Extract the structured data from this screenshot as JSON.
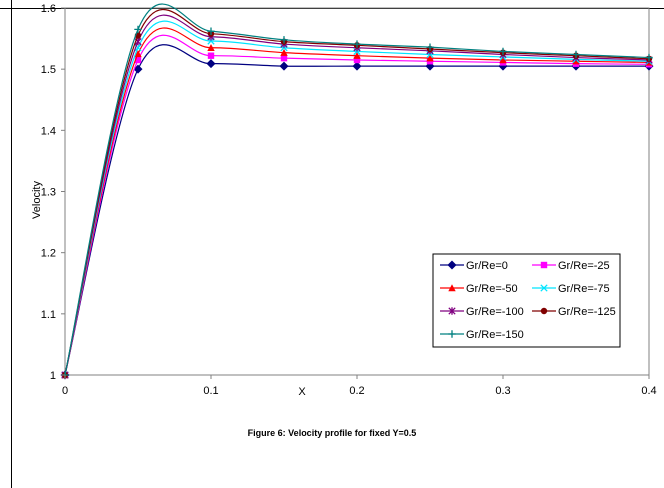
{
  "caption": "Figure 6: Velocity profile for fixed Y=0.5",
  "chart_data": {
    "type": "line",
    "title": "",
    "xlabel": "X",
    "ylabel": "Velocity",
    "xlim": [
      0,
      0.4
    ],
    "ylim": [
      1.0,
      1.6
    ],
    "x_ticks": [
      0,
      0.1,
      0.2,
      0.3,
      0.4
    ],
    "x_tick_labels": [
      "0",
      "0.1",
      "0.2",
      "0.3",
      "0.4"
    ],
    "y_ticks": [
      1.0,
      1.1,
      1.2,
      1.3,
      1.4,
      1.5,
      1.6
    ],
    "y_tick_labels": [
      "1",
      "1.1",
      "1.2",
      "1.3",
      "1.4",
      "1.5",
      "1.6"
    ],
    "grid": "none",
    "legend_position": "bottom-right",
    "x": [
      0,
      0.05,
      0.1,
      0.15,
      0.2,
      0.25,
      0.3,
      0.35,
      0.4
    ],
    "series": [
      {
        "name": "Gr/Re=0",
        "color": "#000080",
        "marker": "diamond",
        "values": [
          1.0,
          1.5,
          1.509,
          1.505,
          1.505,
          1.505,
          1.505,
          1.505,
          1.505
        ]
      },
      {
        "name": "Gr/Re=-25",
        "color": "#ff00ff",
        "marker": "square",
        "values": [
          1.0,
          1.515,
          1.522,
          1.518,
          1.515,
          1.513,
          1.511,
          1.509,
          1.508
        ]
      },
      {
        "name": "Gr/Re=-50",
        "color": "#ff0000",
        "marker": "triangle",
        "values": [
          1.0,
          1.525,
          1.535,
          1.527,
          1.522,
          1.518,
          1.515,
          1.513,
          1.511
        ]
      },
      {
        "name": "Gr/Re=-75",
        "color": "#00e5ff",
        "marker": "x",
        "values": [
          1.0,
          1.535,
          1.546,
          1.535,
          1.529,
          1.524,
          1.52,
          1.516,
          1.513
        ]
      },
      {
        "name": "Gr/Re=-100",
        "color": "#800080",
        "marker": "asterisk",
        "values": [
          1.0,
          1.545,
          1.553,
          1.541,
          1.535,
          1.53,
          1.524,
          1.519,
          1.515
        ]
      },
      {
        "name": "Gr/Re=-125",
        "color": "#800000",
        "marker": "circle",
        "values": [
          1.0,
          1.555,
          1.558,
          1.545,
          1.539,
          1.533,
          1.527,
          1.522,
          1.517
        ]
      },
      {
        "name": "Gr/Re=-150",
        "color": "#008080",
        "marker": "plus",
        "values": [
          1.0,
          1.565,
          1.562,
          1.548,
          1.541,
          1.536,
          1.529,
          1.524,
          1.519
        ]
      }
    ]
  }
}
